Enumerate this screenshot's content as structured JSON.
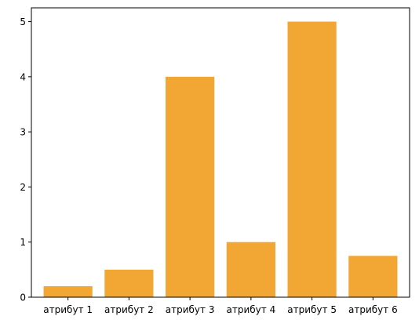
{
  "chart_data": {
    "type": "bar",
    "categories": [
      "атрибут 1",
      "атрибут 2",
      "атрибут 3",
      "атрибут 4",
      "атрибут 5",
      "атрибут 6"
    ],
    "values": [
      0.2,
      0.5,
      4.0,
      1.0,
      5.0,
      0.75
    ],
    "title": "",
    "xlabel": "",
    "ylabel": "",
    "ylim": [
      0,
      5.25
    ],
    "yticks": [
      0,
      1,
      2,
      3,
      4,
      5
    ],
    "grid": false,
    "bar_color": "#f2a633"
  }
}
